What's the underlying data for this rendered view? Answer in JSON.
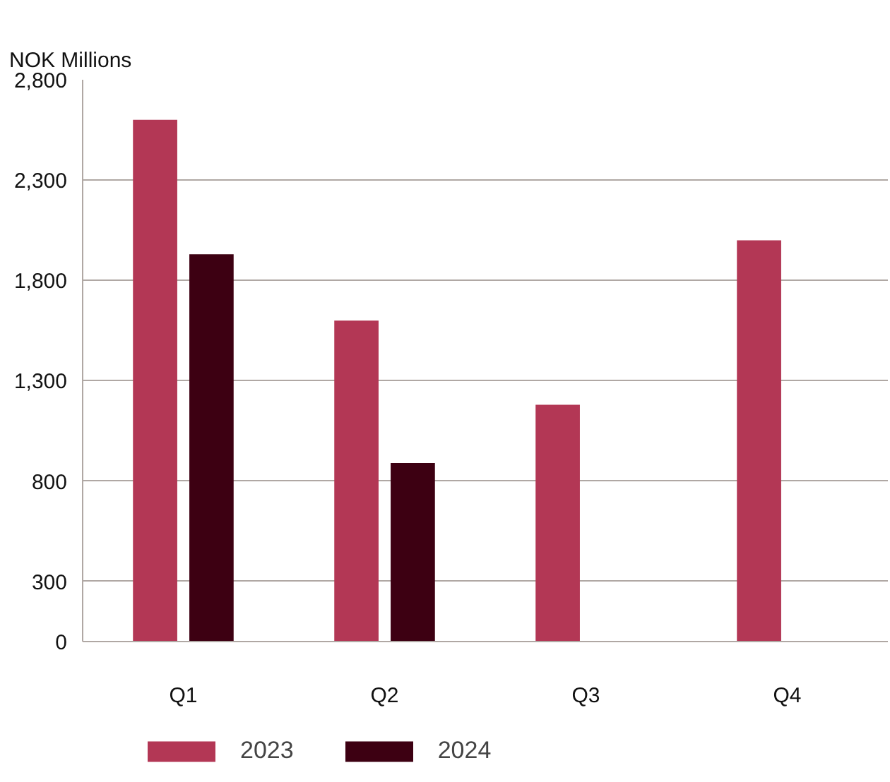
{
  "chart_data": {
    "type": "bar",
    "ylabel": "NOK Millions",
    "categories": [
      "Q1",
      "Q2",
      "Q3",
      "Q4"
    ],
    "series": [
      {
        "name": "2023",
        "color": "#b33755",
        "values": [
          2600,
          1600,
          1180,
          2000
        ]
      },
      {
        "name": "2024",
        "color": "#3d0012",
        "values": [
          1930,
          890,
          null,
          null
        ]
      }
    ],
    "ylim": [
      0,
      2800
    ],
    "yticks": [
      0,
      300,
      800,
      {
        "value": 1300,
        "label": "1,300"
      },
      {
        "value": 1800,
        "label": "1,800"
      },
      {
        "value": 2300,
        "label": "2,300"
      },
      {
        "value": 2800,
        "label": "2,800"
      }
    ],
    "grid": "y",
    "legend": "bottom"
  }
}
